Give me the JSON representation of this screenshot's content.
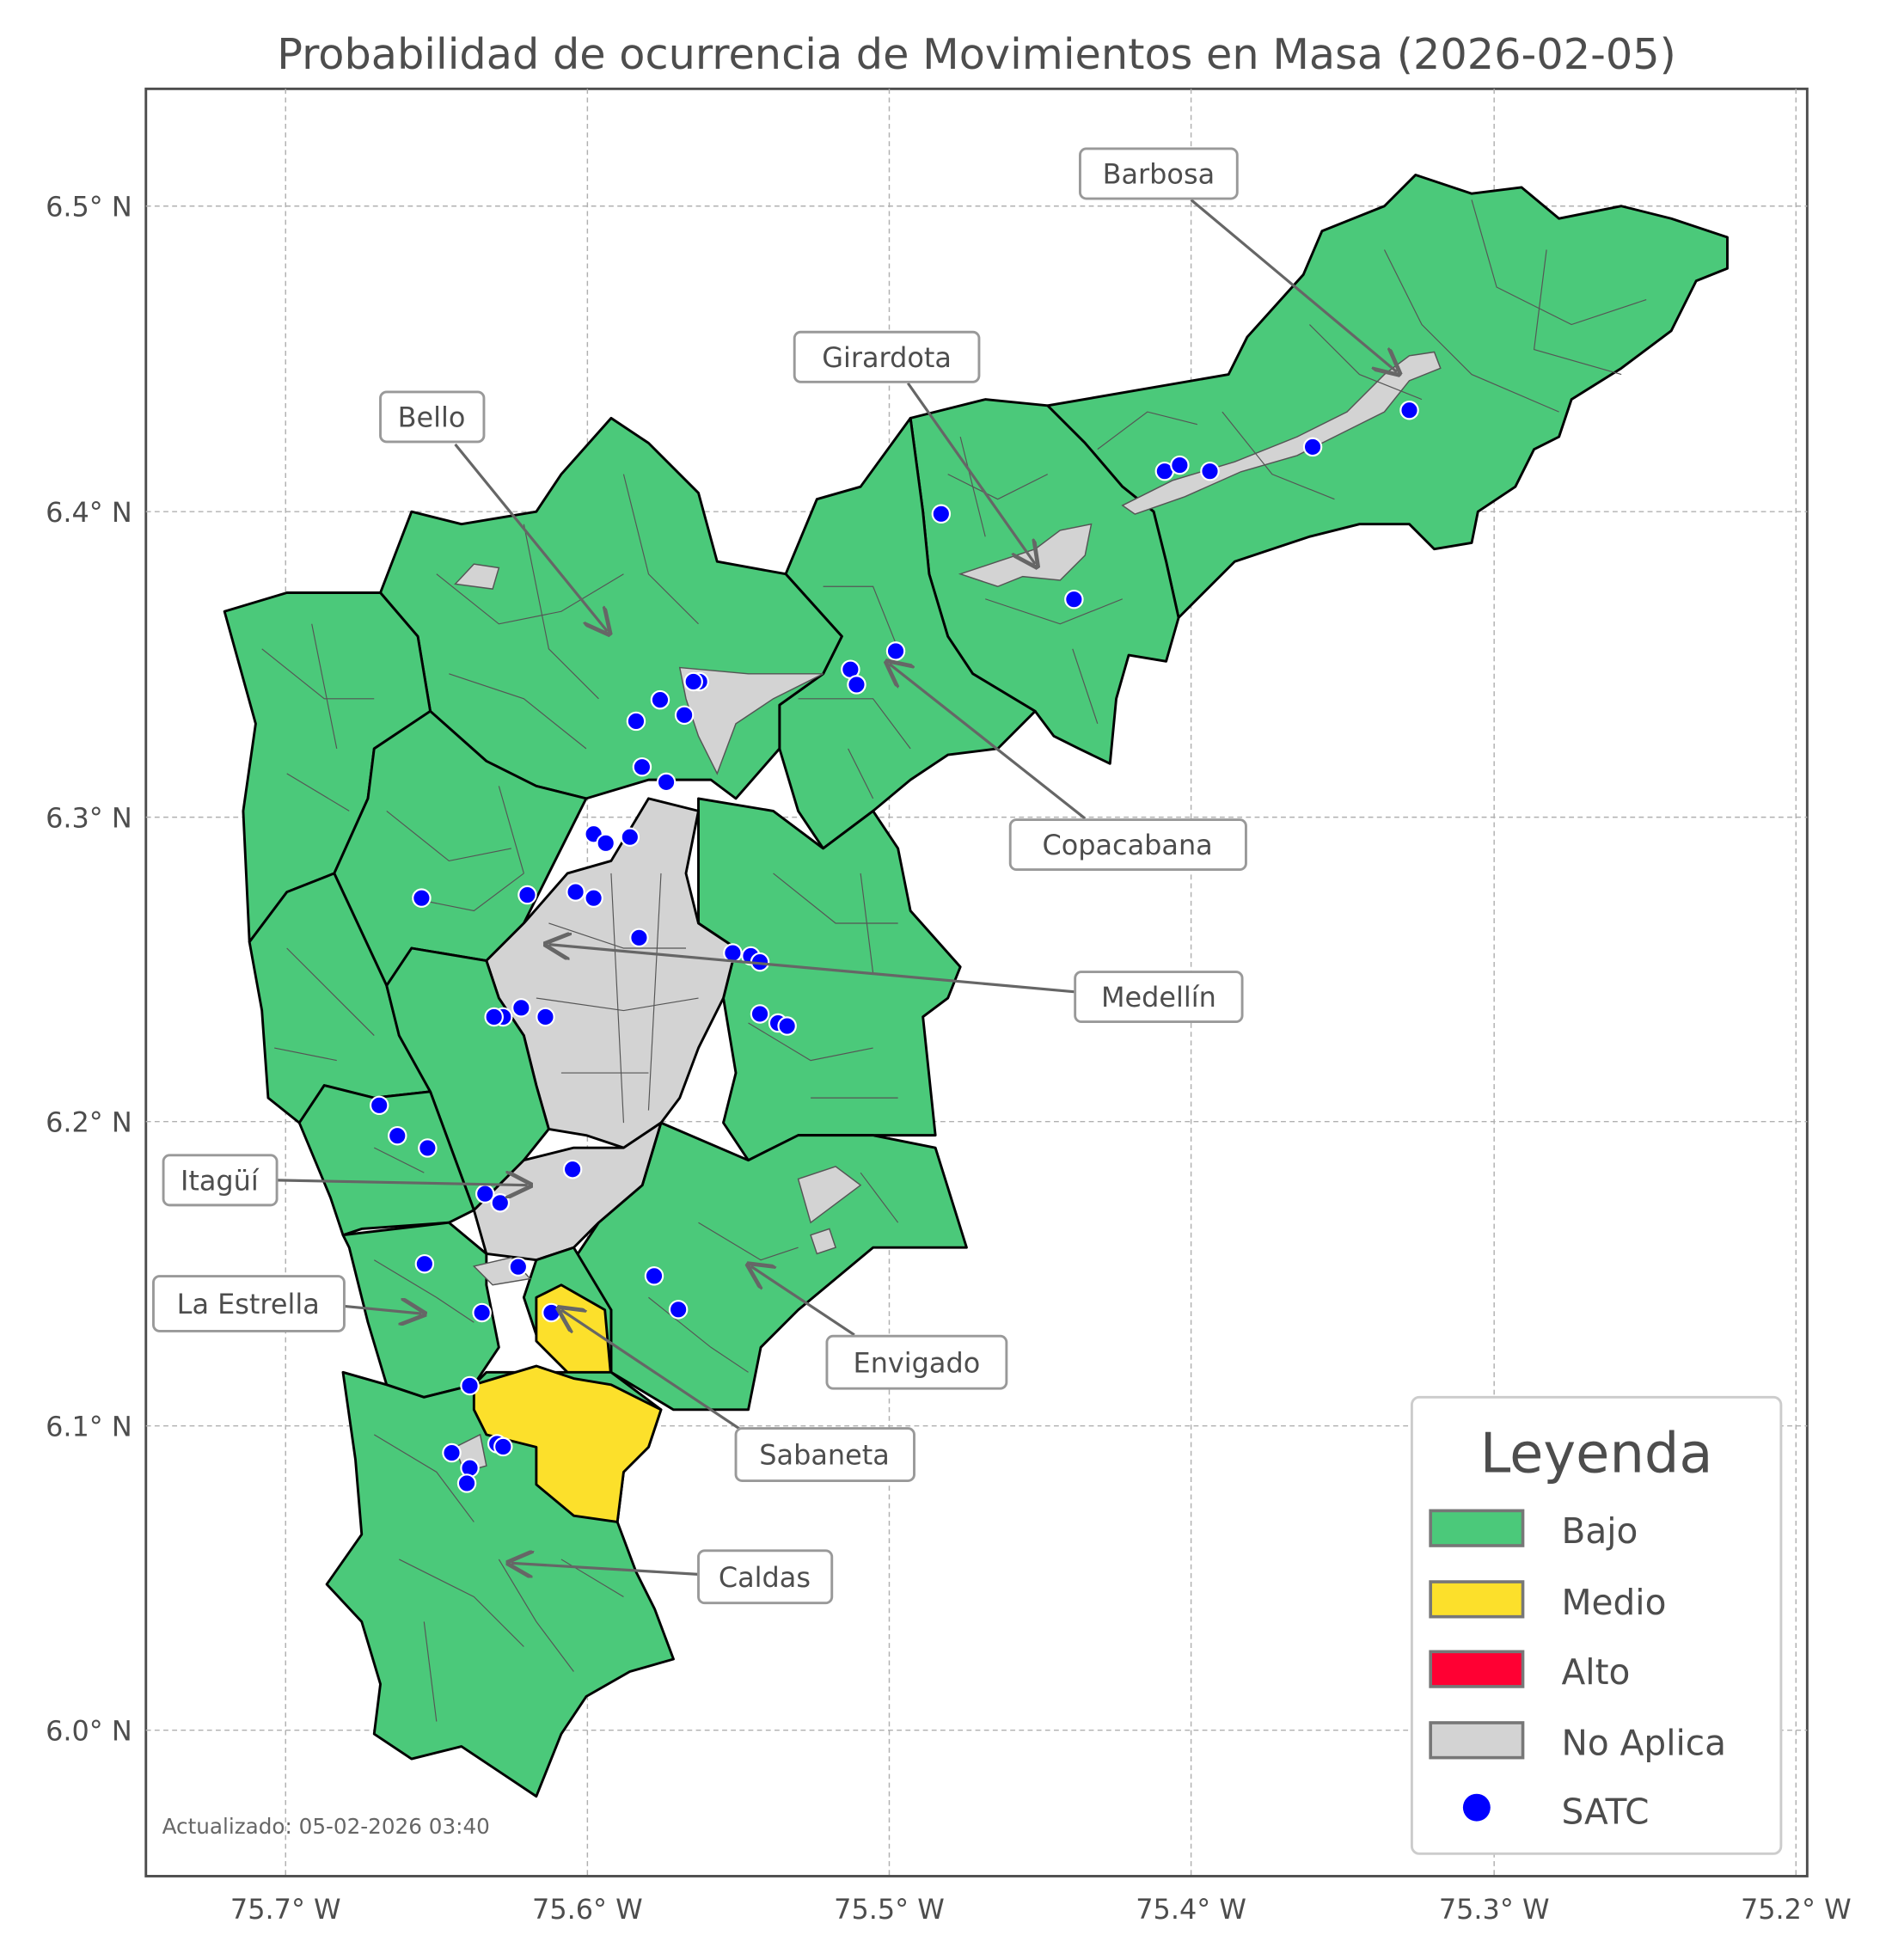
{
  "title": "Probabilidad de ocurrencia de Movimientos en Masa (2026-02-05)",
  "axes": {
    "x_ticks": [
      "75.7° W",
      "75.6° W",
      "75.5° W",
      "75.4° W",
      "75.3° W",
      "75.2° W"
    ],
    "x_tick_values": [
      -75.7,
      -75.6,
      -75.5,
      -75.4,
      -75.3,
      -75.2
    ],
    "y_ticks": [
      "6.5° N",
      "6.4° N",
      "6.3° N",
      "6.2° N",
      "6.1° N",
      "6.0° N"
    ],
    "y_tick_values": [
      6.5,
      6.4,
      6.3,
      6.2,
      6.1,
      6.0
    ],
    "lon_range": [
      -75.746,
      -75.196
    ],
    "lat_range": [
      5.953,
      6.54
    ],
    "grid": true
  },
  "municipalities": [
    {
      "name": "Barbosa",
      "level": "Bajo"
    },
    {
      "name": "Girardota",
      "level": "Bajo"
    },
    {
      "name": "Bello",
      "level": "Bajo"
    },
    {
      "name": "Copacabana",
      "level": "Bajo"
    },
    {
      "name": "Medellín",
      "level": "Bajo"
    },
    {
      "name": "Itagüí",
      "level": "Bajo"
    },
    {
      "name": "La Estrella",
      "level": "Bajo"
    },
    {
      "name": "Envigado",
      "level": "Bajo"
    },
    {
      "name": "Sabaneta",
      "level": "Medio"
    },
    {
      "name": "Caldas",
      "level": "Medio"
    }
  ],
  "legend": {
    "title": "Leyenda",
    "items": [
      {
        "label": "Bajo",
        "color": "#4bc97a"
      },
      {
        "label": "Medio",
        "color": "#fce02b"
      },
      {
        "label": "Alto",
        "color": "#ff0033"
      },
      {
        "label": "No Aplica",
        "color": "#d3d3d3"
      },
      {
        "label": "SATC",
        "color": "#0000ff"
      }
    ]
  },
  "satc_points": [
    [
      -75.483,
      6.399
    ],
    [
      -75.409,
      6.413
    ],
    [
      -75.404,
      6.415
    ],
    [
      -75.394,
      6.413
    ],
    [
      -75.36,
      6.421
    ],
    [
      -75.328,
      6.433
    ],
    [
      -75.439,
      6.371
    ],
    [
      -75.498,
      6.354
    ],
    [
      -75.513,
      6.348
    ],
    [
      -75.511,
      6.343
    ],
    [
      -75.563,
      6.344
    ],
    [
      -75.565,
      6.344
    ],
    [
      -75.568,
      6.333
    ],
    [
      -75.576,
      6.338
    ],
    [
      -75.584,
      6.331
    ],
    [
      -75.582,
      6.316
    ],
    [
      -75.574,
      6.311
    ],
    [
      -75.598,
      6.294
    ],
    [
      -75.594,
      6.291
    ],
    [
      -75.586,
      6.293
    ],
    [
      -75.655,
      6.273
    ],
    [
      -75.62,
      6.274
    ],
    [
      -75.604,
      6.275
    ],
    [
      -75.598,
      6.273
    ],
    [
      -75.583,
      6.26
    ],
    [
      -75.552,
      6.255
    ],
    [
      -75.546,
      6.254
    ],
    [
      -75.543,
      6.252
    ],
    [
      -75.543,
      6.235
    ],
    [
      -75.537,
      6.232
    ],
    [
      -75.534,
      6.231
    ],
    [
      -75.622,
      6.237
    ],
    [
      -75.628,
      6.234
    ],
    [
      -75.631,
      6.234
    ],
    [
      -75.614,
      6.234
    ],
    [
      -75.669,
      6.205
    ],
    [
      -75.663,
      6.195
    ],
    [
      -75.653,
      6.191
    ],
    [
      -75.634,
      6.176
    ],
    [
      -75.629,
      6.173
    ],
    [
      -75.605,
      6.184
    ],
    [
      -75.654,
      6.153
    ],
    [
      -75.623,
      6.152
    ],
    [
      -75.578,
      6.149
    ],
    [
      -75.57,
      6.138
    ],
    [
      -75.635,
      6.137
    ],
    [
      -75.612,
      6.137
    ],
    [
      -75.639,
      6.113
    ],
    [
      -75.645,
      6.091
    ],
    [
      -75.639,
      6.086
    ],
    [
      -75.63,
      6.094
    ],
    [
      -75.64,
      6.081
    ],
    [
      -75.628,
      6.093
    ]
  ],
  "footer": "Actualizado: 05-02-2026 03:40"
}
